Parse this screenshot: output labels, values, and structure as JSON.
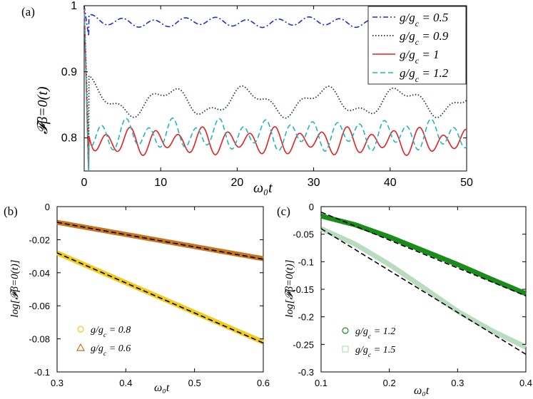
{
  "chart_data": [
    {
      "panel": "(a)",
      "type": "line",
      "xlabel": "ω₀t",
      "ylabel": "𝓕β=0(t)",
      "xlim": [
        0,
        50
      ],
      "ylim": [
        0.75,
        1.0
      ],
      "xticks": [
        "0",
        "10",
        "20",
        "30",
        "40",
        "50"
      ],
      "yticks": [
        "0.8",
        "0.9",
        "1"
      ],
      "legend_position": "top-right",
      "series": [
        {
          "name": "g/gc = 0.5",
          "color": "#1f2bd6",
          "style": "dashdot",
          "plateau": 0.975,
          "amp": 0.008,
          "width": 1.6
        },
        {
          "name": "g/gc = 0.9",
          "color": "#1f3a32",
          "style": "dotted",
          "plateau": 0.855,
          "amp": 0.025,
          "width": 1.8
        },
        {
          "name": "g/gc = 1",
          "color": "#e62020",
          "style": "solid",
          "plateau": 0.795,
          "amp": 0.022,
          "width": 1.6
        },
        {
          "name": "g/gc = 1.2",
          "color": "#22b5bd",
          "style": "dashed",
          "plateau": 0.805,
          "amp": 0.025,
          "width": 1.6
        }
      ]
    },
    {
      "panel": "(b)",
      "type": "line",
      "xlabel": "ω₀t",
      "ylabel": "log[𝓕β=0(t)]",
      "xlim": [
        0.3,
        0.6
      ],
      "ylim": [
        -0.1,
        0
      ],
      "xticks": [
        "0.3",
        "0.4",
        "0.5",
        "0.6"
      ],
      "yticks": [
        "0",
        "-0.02",
        "-0.04",
        "-0.06",
        "-0.08",
        "-0.1"
      ],
      "legend_position": "bottom-left",
      "series": [
        {
          "name": "g/gc = 0.8",
          "color": "#f2cc1c",
          "marker": "circle",
          "x": [
            0.3,
            0.6
          ],
          "y": [
            -0.028,
            -0.082
          ]
        },
        {
          "name": "g/gc = 0.6",
          "color": "#c8741c",
          "marker": "triangle",
          "x": [
            0.3,
            0.6
          ],
          "y": [
            -0.0095,
            -0.0315
          ]
        }
      ],
      "fits": [
        {
          "x": [
            0.3,
            0.6
          ],
          "y": [
            -0.028,
            -0.0825
          ]
        },
        {
          "x": [
            0.3,
            0.6
          ],
          "y": [
            -0.0095,
            -0.0318
          ]
        }
      ]
    },
    {
      "panel": "(c)",
      "type": "line",
      "xlabel": "ω₀t",
      "ylabel": "log[𝓕β=0(t)]",
      "xlim": [
        0.1,
        0.4
      ],
      "ylim": [
        -0.3,
        0
      ],
      "xticks": [
        "0.1",
        "0.2",
        "0.3",
        "0.4"
      ],
      "yticks": [
        "0",
        "-0.05",
        "-0.1",
        "-0.15",
        "-0.2",
        "-0.25",
        "-0.3"
      ],
      "legend_position": "bottom-left",
      "series": [
        {
          "name": "g/gc = 1.2",
          "color": "#1a8c1a",
          "marker": "circle",
          "x": [
            0.1,
            0.15,
            0.2,
            0.25,
            0.3,
            0.35,
            0.4
          ],
          "y": [
            -0.017,
            -0.033,
            -0.055,
            -0.08,
            -0.105,
            -0.132,
            -0.158
          ]
        },
        {
          "name": "g/gc = 1.5",
          "color": "#b9dcc0",
          "marker": "square",
          "x": [
            0.1,
            0.15,
            0.2,
            0.25,
            0.3,
            0.35,
            0.4
          ],
          "y": [
            -0.04,
            -0.068,
            -0.105,
            -0.147,
            -0.19,
            -0.225,
            -0.255
          ]
        }
      ],
      "fits": [
        {
          "x": [
            0.1,
            0.4
          ],
          "y": [
            -0.01,
            -0.162
          ]
        },
        {
          "x": [
            0.1,
            0.4
          ],
          "y": [
            -0.04,
            -0.268
          ]
        }
      ]
    }
  ]
}
